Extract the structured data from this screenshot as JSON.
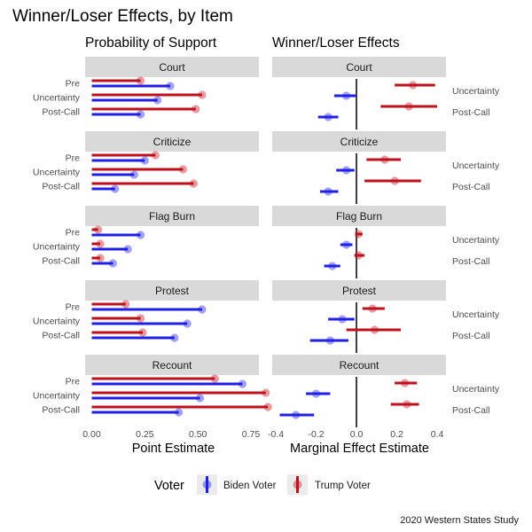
{
  "figure": {
    "title": "Winner/Loser Effects, by Item",
    "caption": "2020 Western States Study"
  },
  "legend": {
    "title": "Voter",
    "entries": [
      {
        "label": "Biden Voter",
        "color": "#1f1fe6"
      },
      {
        "label": "Trump Voter",
        "color": "#c0101c"
      }
    ]
  },
  "chart_data": [
    {
      "type": "dot-and-bar",
      "title": "Probability of Support",
      "xlabel": "Point Estimate",
      "xlim": [
        0,
        0.87
      ],
      "xticks": [
        0.0,
        0.25,
        0.5,
        0.75
      ],
      "xtick_labels": [
        "0.00",
        "0.25",
        "0.50",
        "0.75"
      ],
      "row_labels": [
        "Pre",
        "Uncertainty",
        "Post-Call"
      ],
      "series_order": [
        "Trump Voter",
        "Biden Voter"
      ],
      "panels": [
        {
          "item": "Court",
          "rows": [
            {
              "label": "Pre",
              "Trump Voter": 0.23,
              "Biden Voter": 0.37
            },
            {
              "label": "Uncertainty",
              "Trump Voter": 0.52,
              "Biden Voter": 0.31
            },
            {
              "label": "Post-Call",
              "Trump Voter": 0.49,
              "Biden Voter": 0.23
            }
          ]
        },
        {
          "item": "Criticize",
          "rows": [
            {
              "label": "Pre",
              "Trump Voter": 0.3,
              "Biden Voter": 0.25
            },
            {
              "label": "Uncertainty",
              "Trump Voter": 0.43,
              "Biden Voter": 0.2
            },
            {
              "label": "Post-Call",
              "Trump Voter": 0.48,
              "Biden Voter": 0.11
            }
          ]
        },
        {
          "item": "Flag Burn",
          "rows": [
            {
              "label": "Pre",
              "Trump Voter": 0.03,
              "Biden Voter": 0.23
            },
            {
              "label": "Uncertainty",
              "Trump Voter": 0.04,
              "Biden Voter": 0.17
            },
            {
              "label": "Post-Call",
              "Trump Voter": 0.04,
              "Biden Voter": 0.1
            }
          ]
        },
        {
          "item": "Protest",
          "rows": [
            {
              "label": "Pre",
              "Trump Voter": 0.16,
              "Biden Voter": 0.52
            },
            {
              "label": "Uncertainty",
              "Trump Voter": 0.23,
              "Biden Voter": 0.45
            },
            {
              "label": "Post-Call",
              "Trump Voter": 0.24,
              "Biden Voter": 0.39
            }
          ]
        },
        {
          "item": "Recount",
          "rows": [
            {
              "label": "Pre",
              "Trump Voter": 0.58,
              "Biden Voter": 0.71
            },
            {
              "label": "Uncertainty",
              "Trump Voter": 0.82,
              "Biden Voter": 0.51
            },
            {
              "label": "Post-Call",
              "Trump Voter": 0.83,
              "Biden Voter": 0.41
            }
          ]
        }
      ]
    },
    {
      "type": "point-range",
      "title": "Winner/Loser Effects",
      "xlabel": "Marginal Effect Estimate",
      "xlim": [
        -0.43,
        0.46
      ],
      "xticks": [
        -0.4,
        -0.2,
        0.0,
        0.2,
        0.4
      ],
      "xtick_labels": [
        "-0.4",
        "-0.2",
        "0.0",
        "0.2",
        "0.4"
      ],
      "reference_line": 0,
      "row_labels": [
        "Uncertainty",
        "Post-Call"
      ],
      "panels": [
        {
          "item": "Court",
          "rows": [
            {
              "label": "Uncertainty",
              "Trump Voter": {
                "est": 0.28,
                "lo": 0.19,
                "hi": 0.39
              },
              "Biden Voter": {
                "est": -0.05,
                "lo": -0.11,
                "hi": 0.0
              }
            },
            {
              "label": "Post-Call",
              "Trump Voter": {
                "est": 0.26,
                "lo": 0.12,
                "hi": 0.4
              },
              "Biden Voter": {
                "est": -0.14,
                "lo": -0.19,
                "hi": -0.09
              }
            }
          ]
        },
        {
          "item": "Criticize",
          "rows": [
            {
              "label": "Uncertainty",
              "Trump Voter": {
                "est": 0.14,
                "lo": 0.05,
                "hi": 0.22
              },
              "Biden Voter": {
                "est": -0.05,
                "lo": -0.1,
                "hi": -0.01
              }
            },
            {
              "label": "Post-Call",
              "Trump Voter": {
                "est": 0.19,
                "lo": 0.04,
                "hi": 0.32
              },
              "Biden Voter": {
                "est": -0.14,
                "lo": -0.18,
                "hi": -0.09
              }
            }
          ]
        },
        {
          "item": "Flag Burn",
          "rows": [
            {
              "label": "Uncertainty",
              "Trump Voter": {
                "est": 0.01,
                "lo": 0.0,
                "hi": 0.03
              },
              "Biden Voter": {
                "est": -0.05,
                "lo": -0.08,
                "hi": -0.02
              }
            },
            {
              "label": "Post-Call",
              "Trump Voter": {
                "est": 0.01,
                "lo": -0.01,
                "hi": 0.04
              },
              "Biden Voter": {
                "est": -0.12,
                "lo": -0.16,
                "hi": -0.08
              }
            }
          ]
        },
        {
          "item": "Protest",
          "rows": [
            {
              "label": "Uncertainty",
              "Trump Voter": {
                "est": 0.08,
                "lo": 0.03,
                "hi": 0.14
              },
              "Biden Voter": {
                "est": -0.07,
                "lo": -0.14,
                "hi": -0.01
              }
            },
            {
              "label": "Post-Call",
              "Trump Voter": {
                "est": 0.09,
                "lo": -0.05,
                "hi": 0.22
              },
              "Biden Voter": {
                "est": -0.13,
                "lo": -0.23,
                "hi": -0.04
              }
            }
          ]
        },
        {
          "item": "Recount",
          "rows": [
            {
              "label": "Uncertainty",
              "Trump Voter": {
                "est": 0.24,
                "lo": 0.19,
                "hi": 0.3
              },
              "Biden Voter": {
                "est": -0.2,
                "lo": -0.25,
                "hi": -0.13
              }
            },
            {
              "label": "Post-Call",
              "Trump Voter": {
                "est": 0.25,
                "lo": 0.17,
                "hi": 0.31
              },
              "Biden Voter": {
                "est": -0.3,
                "lo": -0.38,
                "hi": -0.21
              }
            }
          ]
        }
      ]
    }
  ]
}
